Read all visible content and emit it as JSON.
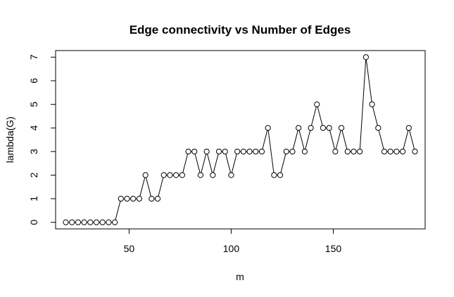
{
  "chart_data": {
    "type": "line",
    "title": "Edge connectivity vs Number of Edges",
    "xlabel": "m",
    "ylabel": "lambda(G)",
    "xlim": [
      14,
      195
    ],
    "ylim": [
      -0.28,
      7.28
    ],
    "x_ticks": [
      50,
      100,
      150
    ],
    "y_ticks": [
      0,
      1,
      2,
      3,
      4,
      5,
      6,
      7
    ],
    "grid": false,
    "legend": "none",
    "point_marker": "open-circle",
    "colors": {
      "line": "#000000",
      "marker": "#000000"
    },
    "series": [
      {
        "x": [
          19,
          22,
          25,
          28,
          31,
          34,
          37,
          40,
          43,
          46,
          49,
          52,
          55,
          58,
          61,
          64,
          67,
          70,
          73,
          76,
          79,
          82,
          85,
          88,
          91,
          94,
          97,
          100,
          103,
          106,
          109,
          112,
          115,
          118,
          121,
          124,
          127,
          130,
          133,
          136,
          139,
          142,
          145,
          148,
          151,
          154,
          157,
          160,
          163,
          166,
          169,
          172,
          175,
          178,
          181,
          184,
          187,
          190
        ],
        "y": [
          0,
          0,
          0,
          0,
          0,
          0,
          0,
          0,
          0,
          1,
          1,
          1,
          1,
          2,
          1,
          1,
          2,
          2,
          2,
          2,
          3,
          3,
          2,
          3,
          2,
          3,
          3,
          2,
          3,
          3,
          3,
          3,
          3,
          4,
          2,
          2,
          3,
          3,
          4,
          3,
          4,
          5,
          4,
          4,
          3,
          4,
          3,
          3,
          3,
          7,
          5,
          4,
          3,
          3,
          3,
          3,
          4,
          3
        ]
      }
    ]
  }
}
